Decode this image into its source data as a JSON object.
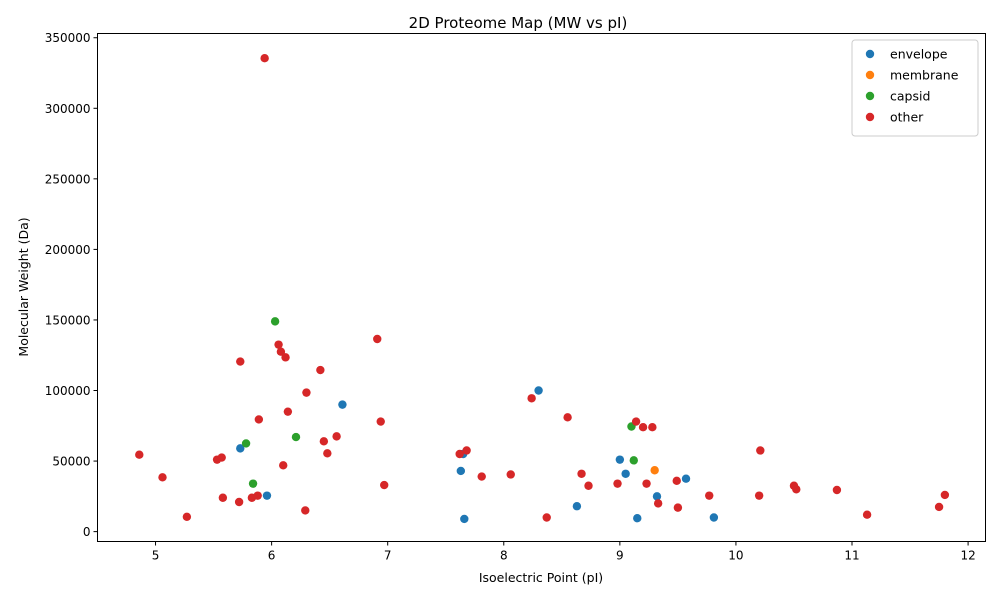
{
  "chart_data": {
    "type": "scatter",
    "title": "2D Proteome Map (MW vs pI)",
    "xlabel": "Isoelectric Point (pI)",
    "ylabel": "Molecular Weight (Da)",
    "xlim": [
      4.5,
      12.15
    ],
    "ylim": [
      -7000,
      353000
    ],
    "xticks": [
      5,
      6,
      7,
      8,
      9,
      10,
      11,
      12
    ],
    "yticks": [
      0,
      50000,
      100000,
      150000,
      200000,
      250000,
      300000,
      350000
    ],
    "grid": false,
    "legend_position": "top-right",
    "series": [
      {
        "name": "envelope",
        "color": "#1f77b4",
        "points": [
          [
            5.73,
            59000
          ],
          [
            5.96,
            25500
          ],
          [
            6.61,
            90000
          ],
          [
            7.63,
            43000
          ],
          [
            7.65,
            55000
          ],
          [
            7.66,
            9000
          ],
          [
            8.3,
            100000
          ],
          [
            8.63,
            18000
          ],
          [
            9.0,
            51000
          ],
          [
            9.05,
            41000
          ],
          [
            9.15,
            9500
          ],
          [
            9.32,
            25000
          ],
          [
            9.57,
            37500
          ],
          [
            9.81,
            10000
          ]
        ]
      },
      {
        "name": "membrane",
        "color": "#ff7f0e",
        "points": [
          [
            9.3,
            43500
          ]
        ]
      },
      {
        "name": "capsid",
        "color": "#2ca02c",
        "points": [
          [
            5.78,
            62500
          ],
          [
            5.84,
            34000
          ],
          [
            6.03,
            149000
          ],
          [
            6.21,
            67000
          ],
          [
            9.1,
            74500
          ],
          [
            9.12,
            50500
          ]
        ]
      },
      {
        "name": "other",
        "color": "#d62728",
        "points": [
          [
            4.86,
            54500
          ],
          [
            5.06,
            38500
          ],
          [
            5.27,
            10500
          ],
          [
            5.53,
            51000
          ],
          [
            5.57,
            52500
          ],
          [
            5.58,
            24000
          ],
          [
            5.72,
            21000
          ],
          [
            5.73,
            120500
          ],
          [
            5.83,
            24000
          ],
          [
            5.88,
            25500
          ],
          [
            5.89,
            79500
          ],
          [
            5.94,
            335500
          ],
          [
            6.06,
            132500
          ],
          [
            6.08,
            127500
          ],
          [
            6.1,
            47000
          ],
          [
            6.12,
            123500
          ],
          [
            6.14,
            85000
          ],
          [
            6.29,
            15000
          ],
          [
            6.3,
            98500
          ],
          [
            6.42,
            114500
          ],
          [
            6.45,
            64000
          ],
          [
            6.48,
            55500
          ],
          [
            6.56,
            67500
          ],
          [
            6.91,
            136500
          ],
          [
            6.94,
            78000
          ],
          [
            6.97,
            33000
          ],
          [
            7.62,
            55000
          ],
          [
            7.68,
            57500
          ],
          [
            7.81,
            39000
          ],
          [
            8.06,
            40500
          ],
          [
            8.24,
            94500
          ],
          [
            8.37,
            10000
          ],
          [
            8.55,
            81000
          ],
          [
            8.67,
            41000
          ],
          [
            8.73,
            32500
          ],
          [
            8.98,
            34000
          ],
          [
            9.14,
            78000
          ],
          [
            9.2,
            74000
          ],
          [
            9.23,
            34000
          ],
          [
            9.28,
            74000
          ],
          [
            9.33,
            20000
          ],
          [
            9.49,
            36000
          ],
          [
            9.5,
            17000
          ],
          [
            9.77,
            25500
          ],
          [
            10.2,
            25500
          ],
          [
            10.21,
            57500
          ],
          [
            10.5,
            32500
          ],
          [
            10.52,
            30000
          ],
          [
            10.87,
            29500
          ],
          [
            11.13,
            12000
          ],
          [
            11.75,
            17500
          ],
          [
            11.8,
            26000
          ]
        ]
      }
    ]
  }
}
